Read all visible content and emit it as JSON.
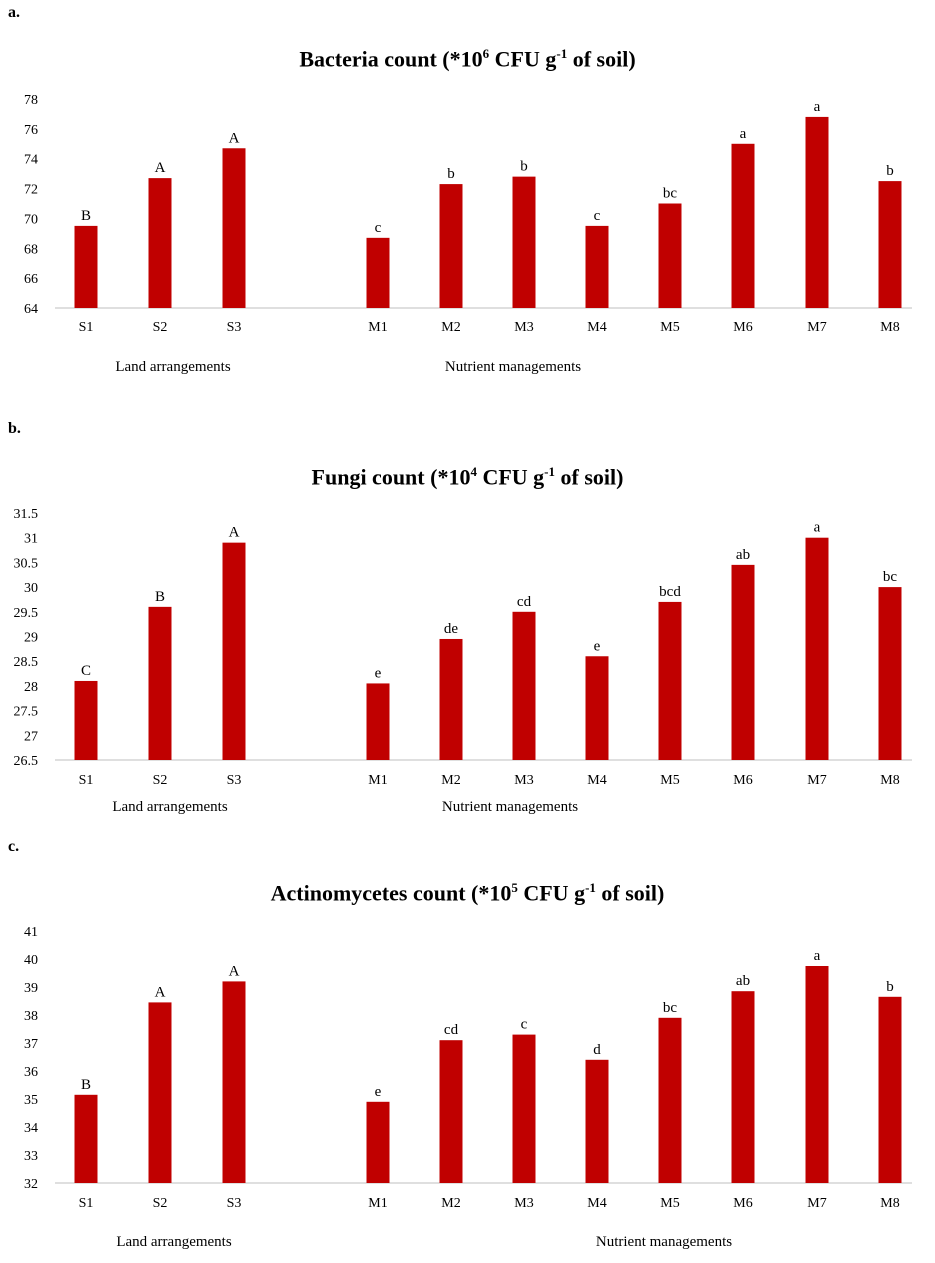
{
  "bar_color": "#C00000",
  "chart_data": [
    {
      "type": "bar",
      "panel": "a.",
      "title_prefix": "Bacteria count (*10",
      "title_sup1": "6",
      "title_mid": " CFU g",
      "title_sup2": "-1",
      "title_suffix": " of soil)",
      "ylim": [
        64,
        78
      ],
      "yticks": [
        "64",
        "66",
        "68",
        "70",
        "72",
        "74",
        "76",
        "78"
      ],
      "groups": [
        {
          "xlabel": "Land arrangements",
          "categories": [
            "S1",
            "S2",
            "S3"
          ],
          "values": [
            69.5,
            72.7,
            74.7
          ],
          "letters": [
            "B",
            "A",
            "A"
          ]
        },
        {
          "xlabel": "Nutrient managements",
          "categories": [
            "M1",
            "M2",
            "M3",
            "M4",
            "M5",
            "M6",
            "M7",
            "M8"
          ],
          "values": [
            68.7,
            72.3,
            72.8,
            69.5,
            71.0,
            75.0,
            76.8,
            72.5
          ],
          "letters": [
            "c",
            "b",
            "b",
            "c",
            "bc",
            "a",
            "a",
            "b"
          ]
        }
      ]
    },
    {
      "type": "bar",
      "panel": "b.",
      "title_prefix": "Fungi count (*10",
      "title_sup1": "4",
      "title_mid": " CFU g",
      "title_sup2": "-1",
      "title_suffix": " of soil)",
      "ylim": [
        26.5,
        31.5
      ],
      "yticks": [
        "26.5",
        "27",
        "27.5",
        "28",
        "28.5",
        "29",
        "29.5",
        "30",
        "30.5",
        "31",
        "31.5"
      ],
      "groups": [
        {
          "xlabel": "Land arrangements",
          "categories": [
            "S1",
            "S2",
            "S3"
          ],
          "values": [
            28.1,
            29.6,
            30.9
          ],
          "letters": [
            "C",
            "B",
            "A"
          ]
        },
        {
          "xlabel": "Nutrient managements",
          "categories": [
            "M1",
            "M2",
            "M3",
            "M4",
            "M5",
            "M6",
            "M7",
            "M8"
          ],
          "values": [
            28.05,
            28.95,
            29.5,
            28.6,
            29.7,
            30.45,
            31.0,
            30.0
          ],
          "letters": [
            "e",
            "de",
            "cd",
            "e",
            "bcd",
            "ab",
            "a",
            "bc"
          ]
        }
      ]
    },
    {
      "type": "bar",
      "panel": "c.",
      "title_prefix": "Actinomycetes count (*10",
      "title_sup1": "5",
      "title_mid": " CFU g",
      "title_sup2": "-1",
      "title_suffix": " of soil)",
      "ylim": [
        32,
        41
      ],
      "yticks": [
        "32",
        "33",
        "34",
        "35",
        "36",
        "37",
        "38",
        "39",
        "40",
        "41"
      ],
      "groups": [
        {
          "xlabel": "Land arrangements",
          "categories": [
            "S1",
            "S2",
            "S3"
          ],
          "values": [
            35.15,
            38.45,
            39.2
          ],
          "letters": [
            "B",
            "A",
            "A"
          ]
        },
        {
          "xlabel": "Nutrient managements",
          "categories": [
            "M1",
            "M2",
            "M3",
            "M4",
            "M5",
            "M6",
            "M7",
            "M8"
          ],
          "values": [
            34.9,
            37.1,
            37.3,
            36.4,
            37.9,
            38.85,
            39.75,
            38.65
          ],
          "letters": [
            "e",
            "cd",
            "c",
            "d",
            "bc",
            "ab",
            "a",
            "b"
          ]
        }
      ]
    }
  ]
}
